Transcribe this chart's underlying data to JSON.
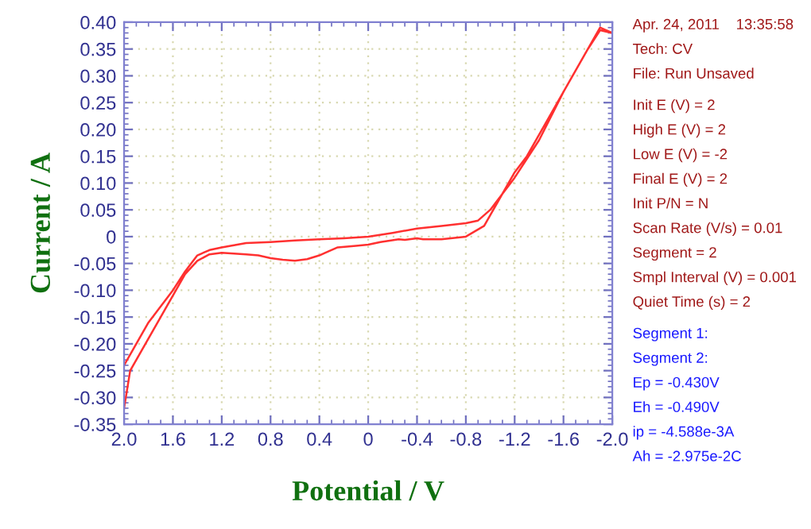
{
  "chart_data": {
    "type": "line",
    "xlabel": "Potential / V",
    "ylabel": "Current / A",
    "x": [
      2.0,
      1.9,
      1.8,
      1.7,
      1.6,
      1.5,
      1.4,
      1.3,
      1.2,
      1.0,
      0.8,
      0.6,
      0.4,
      0.2,
      0.0,
      -0.2,
      -0.4,
      -0.6,
      -0.8,
      -0.9,
      -1.0,
      -1.1,
      -1.2,
      -1.4,
      -1.6,
      -1.8,
      -1.9,
      -2.0,
      -1.9,
      -1.8,
      -1.6,
      -1.4,
      -1.3,
      -1.2,
      -1.1,
      -1.0,
      -0.95,
      -0.8,
      -0.6,
      -0.5,
      -0.45,
      -0.4,
      -0.3,
      -0.25,
      -0.1,
      0.0,
      0.1,
      0.25,
      0.35,
      0.4,
      0.5,
      0.6,
      0.7,
      0.8,
      0.9,
      1.0,
      1.2,
      1.3,
      1.4,
      1.5,
      1.6,
      1.7,
      1.8,
      1.9,
      1.95,
      2.0
    ],
    "series": [
      {
        "color": "#ff3030",
        "values": [
          -0.24,
          -0.2,
          -0.16,
          -0.13,
          -0.1,
          -0.065,
          -0.035,
          -0.025,
          -0.02,
          -0.012,
          -0.01,
          -0.007,
          -0.005,
          -0.003,
          0.0,
          0.007,
          0.015,
          0.02,
          0.025,
          0.03,
          0.05,
          0.08,
          0.11,
          0.18,
          0.27,
          0.35,
          0.39,
          0.38,
          0.385,
          0.35,
          0.27,
          0.19,
          0.15,
          0.12,
          0.08,
          0.04,
          0.02,
          0.0,
          -0.005,
          -0.005,
          -0.005,
          -0.003,
          -0.006,
          -0.005,
          -0.01,
          -0.015,
          -0.017,
          -0.02,
          -0.03,
          -0.035,
          -0.042,
          -0.045,
          -0.043,
          -0.04,
          -0.035,
          -0.033,
          -0.03,
          -0.033,
          -0.045,
          -0.07,
          -0.11,
          -0.15,
          -0.19,
          -0.23,
          -0.25,
          -0.32
        ]
      }
    ],
    "xlim": [
      2.0,
      -2.0
    ],
    "xticks": [
      {
        "value": 2.0,
        "label": "2.0"
      },
      1.6,
      1.2,
      0.8,
      0.4,
      0,
      -0.4,
      -0.8,
      -1.2,
      -1.6,
      {
        "value": -2.0,
        "label": "-2.0"
      }
    ],
    "ylim": [
      -0.35,
      0.4
    ],
    "yticks": [
      {
        "value": -0.35,
        "label": "-0.35"
      },
      {
        "value": -0.3,
        "label": "-0.30"
      },
      {
        "value": -0.25,
        "label": "-0.25"
      },
      {
        "value": -0.2,
        "label": "-0.20"
      },
      {
        "value": -0.15,
        "label": "-0.15"
      },
      {
        "value": -0.1,
        "label": "-0.10"
      },
      {
        "value": -0.05,
        "label": "-0.05"
      },
      0,
      {
        "value": 0.05,
        "label": "0.05"
      },
      {
        "value": 0.1,
        "label": "0.10"
      },
      {
        "value": 0.15,
        "label": "0.15"
      },
      {
        "value": 0.2,
        "label": "0.20"
      },
      {
        "value": 0.25,
        "label": "0.25"
      },
      {
        "value": 0.3,
        "label": "0.30"
      },
      {
        "value": 0.35,
        "label": "0.35"
      },
      {
        "value": 0.4,
        "label": "0.40"
      }
    ],
    "grid": true,
    "marker": "none",
    "line_style": "solid",
    "legend": false,
    "annotations": [
      "Apr. 24, 2011    13:35:58",
      "Tech: CV",
      "File: Run Unsaved",
      "Init E (V) = 2",
      "High E (V) = 2",
      "Low E (V) = -2",
      "Final E (V) = 2",
      "Init P/N = N",
      "Scan Rate (V/s) = 0.01",
      "Segment = 2",
      "Smpl Interval (V) = 0.001",
      "Quiet Time (s) = 2",
      "Segment 1:",
      "Segment 2:",
      "Ep = -0.430V",
      "Eh = -0.490V",
      "ip = -4.588e-3A",
      "Ah = -2.975e-2C"
    ]
  }
}
